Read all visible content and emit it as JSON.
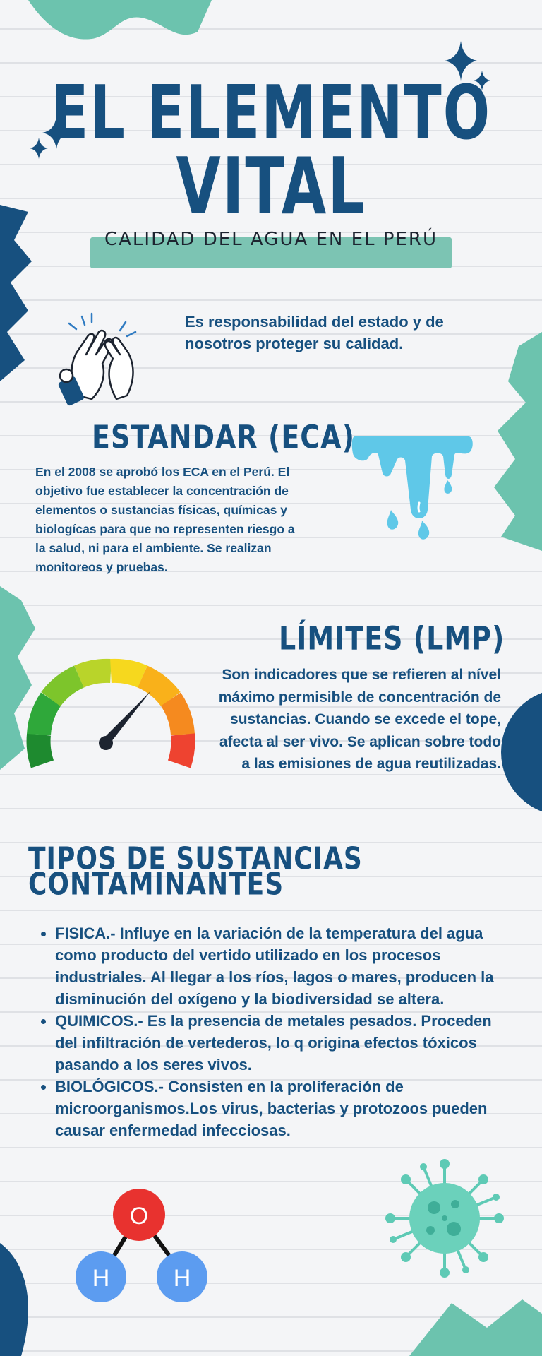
{
  "header": {
    "title_line1": "EL ELEMENTO",
    "title_line2": "VITAL",
    "subtitle": "CALIDAD DEL AGUA EN EL PERÚ"
  },
  "intro": {
    "text": "Es responsabilidad del estado y de nosotros proteger su calidad."
  },
  "eca": {
    "heading": "ESTANDAR (ECA)",
    "text": "En el 2008 se aprobó los ECA en el Perú. El objetivo fue establecer la concentración de elementos o sustancias físicas, químicas y biologícas para que no representen riesgo a la salud, ni para el ambiente. Se realizan monitoreos y pruebas."
  },
  "lmp": {
    "heading": "LÍMITES (LMP)",
    "text": "Son indicadores que se refieren al nível máximo permisible de concentración de sustancias. Cuando se excede el tope, afecta al ser vivo. Se aplican sobre todo a las emisiones de agua reutilizadas."
  },
  "types": {
    "heading_line1": "TIPOS DE SUSTANCIAS",
    "heading_line2": "CONTAMINANTES",
    "items": [
      "FISICA.- Influye en la variación de la temperatura del agua como producto del vertido utilizado en los procesos industriales. Al llegar a los ríos, lagos o mares, producen la disminución del oxígeno y la biodiversidad se altera.",
      "QUIMICOS.- Es la presencia de metales pesados. Proceden del infiltración de vertederos, lo q origina efectos tóxicos pasando a los seres vivos.",
      "BIOLÓGICOS.- Consisten en la proliferación de microorganismos.Los virus, bacterias y protozoos pueden causar enfermedad infecciosas."
    ]
  },
  "molecule": {
    "center": "O",
    "left": "H",
    "right": "H"
  },
  "colors": {
    "navy": "#17507f",
    "teal": "#7cc4b3",
    "water": "#5fc8e8",
    "oxygen": "#e8322f",
    "hydrogen": "#5c9cf0"
  }
}
